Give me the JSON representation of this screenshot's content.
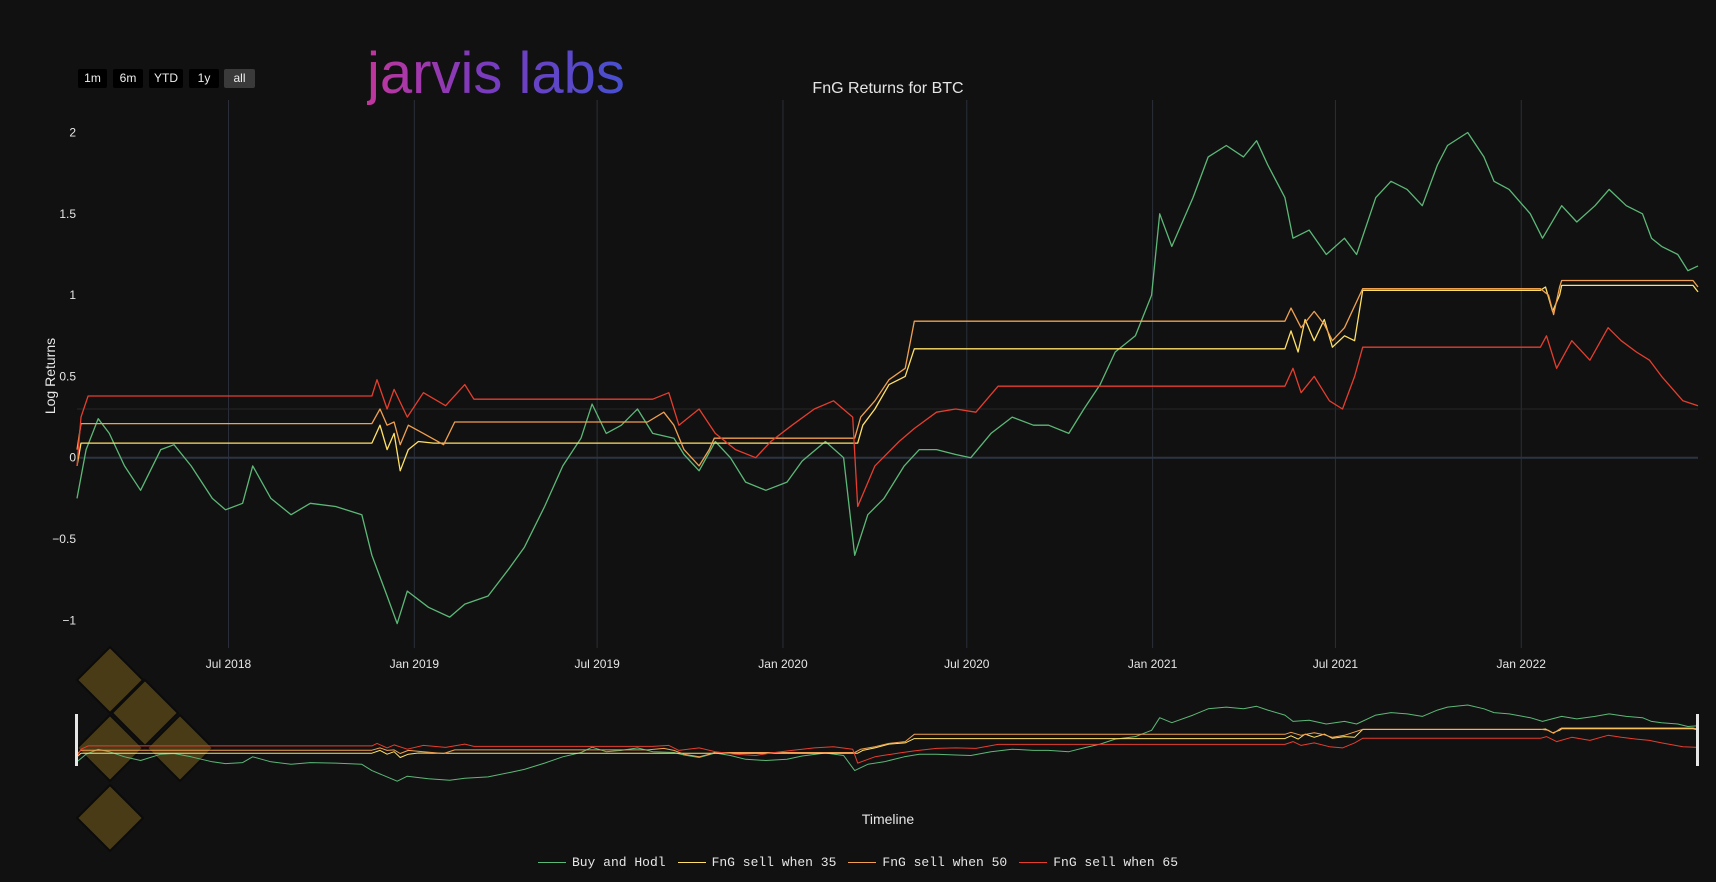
{
  "logo": "jarvis labs",
  "range_buttons": [
    "1m",
    "6m",
    "YTD",
    "1y",
    "all"
  ],
  "active_range": "all",
  "chart_data": {
    "type": "line",
    "title": "FnG Returns for BTC",
    "ylabel": "Log Returns",
    "rangeslider_label": "Timeline",
    "xrange": [
      "2018-02-01",
      "2022-06-25"
    ],
    "ylim": [
      -1.17,
      2.2
    ],
    "x_ticks": [
      {
        "date": "2018-07-01",
        "label": "Jul 2018"
      },
      {
        "date": "2019-01-01",
        "label": "Jan 2019"
      },
      {
        "date": "2019-07-01",
        "label": "Jul 2019"
      },
      {
        "date": "2020-01-01",
        "label": "Jan 2020"
      },
      {
        "date": "2020-07-01",
        "label": "Jul 2020"
      },
      {
        "date": "2021-01-01",
        "label": "Jan 2021"
      },
      {
        "date": "2021-07-01",
        "label": "Jul 2021"
      },
      {
        "date": "2022-01-01",
        "label": "Jan 2022"
      }
    ],
    "y_ticks": [
      {
        "value": -1,
        "label": "−1"
      },
      {
        "value": -0.5,
        "label": "−0.5"
      },
      {
        "value": 0,
        "label": "0"
      },
      {
        "value": 0.5,
        "label": "0.5"
      },
      {
        "value": 1,
        "label": "1"
      },
      {
        "value": 1.5,
        "label": "1.5"
      },
      {
        "value": 2,
        "label": "2"
      }
    ],
    "grid": true,
    "legend_position": "bottom-center",
    "series": [
      {
        "name": "Buy and Hodl",
        "color": "#5cb878",
        "points": [
          [
            "2018-02-01",
            -0.25
          ],
          [
            "2018-02-10",
            0.05
          ],
          [
            "2018-02-22",
            0.24
          ],
          [
            "2018-03-05",
            0.15
          ],
          [
            "2018-03-20",
            -0.05
          ],
          [
            "2018-04-05",
            -0.2
          ],
          [
            "2018-04-25",
            0.05
          ],
          [
            "2018-05-08",
            0.08
          ],
          [
            "2018-05-25",
            -0.05
          ],
          [
            "2018-06-15",
            -0.25
          ],
          [
            "2018-06-28",
            -0.32
          ],
          [
            "2018-07-15",
            -0.28
          ],
          [
            "2018-07-25",
            -0.05
          ],
          [
            "2018-08-12",
            -0.25
          ],
          [
            "2018-09-01",
            -0.35
          ],
          [
            "2018-09-20",
            -0.28
          ],
          [
            "2018-10-15",
            -0.3
          ],
          [
            "2018-11-10",
            -0.35
          ],
          [
            "2018-11-20",
            -0.6
          ],
          [
            "2018-12-05",
            -0.85
          ],
          [
            "2018-12-15",
            -1.02
          ],
          [
            "2018-12-25",
            -0.82
          ],
          [
            "2019-01-15",
            -0.92
          ],
          [
            "2019-02-05",
            -0.98
          ],
          [
            "2019-02-20",
            -0.9
          ],
          [
            "2019-03-15",
            -0.85
          ],
          [
            "2019-04-05",
            -0.68
          ],
          [
            "2019-04-20",
            -0.55
          ],
          [
            "2019-05-10",
            -0.3
          ],
          [
            "2019-05-28",
            -0.05
          ],
          [
            "2019-06-15",
            0.12
          ],
          [
            "2019-06-26",
            0.33
          ],
          [
            "2019-07-10",
            0.15
          ],
          [
            "2019-07-25",
            0.2
          ],
          [
            "2019-08-10",
            0.3
          ],
          [
            "2019-08-25",
            0.15
          ],
          [
            "2019-09-15",
            0.12
          ],
          [
            "2019-09-25",
            0.02
          ],
          [
            "2019-10-10",
            -0.08
          ],
          [
            "2019-10-26",
            0.1
          ],
          [
            "2019-11-10",
            0.0
          ],
          [
            "2019-11-25",
            -0.15
          ],
          [
            "2019-12-15",
            -0.2
          ],
          [
            "2020-01-05",
            -0.15
          ],
          [
            "2020-01-20",
            -0.02
          ],
          [
            "2020-02-12",
            0.1
          ],
          [
            "2020-03-01",
            0.0
          ],
          [
            "2020-03-12",
            -0.6
          ],
          [
            "2020-03-25",
            -0.35
          ],
          [
            "2020-04-10",
            -0.25
          ],
          [
            "2020-04-30",
            -0.05
          ],
          [
            "2020-05-15",
            0.05
          ],
          [
            "2020-06-01",
            0.05
          ],
          [
            "2020-06-20",
            0.02
          ],
          [
            "2020-07-05",
            0.0
          ],
          [
            "2020-07-25",
            0.15
          ],
          [
            "2020-08-15",
            0.25
          ],
          [
            "2020-09-05",
            0.2
          ],
          [
            "2020-09-20",
            0.2
          ],
          [
            "2020-10-10",
            0.15
          ],
          [
            "2020-10-25",
            0.3
          ],
          [
            "2020-11-10",
            0.45
          ],
          [
            "2020-11-25",
            0.65
          ],
          [
            "2020-12-15",
            0.75
          ],
          [
            "2020-12-31",
            1.0
          ],
          [
            "2021-01-08",
            1.5
          ],
          [
            "2021-01-20",
            1.3
          ],
          [
            "2021-02-10",
            1.6
          ],
          [
            "2021-02-25",
            1.85
          ],
          [
            "2021-03-15",
            1.92
          ],
          [
            "2021-04-01",
            1.85
          ],
          [
            "2021-04-14",
            1.95
          ],
          [
            "2021-04-25",
            1.8
          ],
          [
            "2021-05-12",
            1.6
          ],
          [
            "2021-05-20",
            1.35
          ],
          [
            "2021-06-05",
            1.4
          ],
          [
            "2021-06-22",
            1.25
          ],
          [
            "2021-07-10",
            1.35
          ],
          [
            "2021-07-22",
            1.25
          ],
          [
            "2021-08-10",
            1.6
          ],
          [
            "2021-08-25",
            1.7
          ],
          [
            "2021-09-10",
            1.65
          ],
          [
            "2021-09-25",
            1.55
          ],
          [
            "2021-10-10",
            1.8
          ],
          [
            "2021-10-20",
            1.92
          ],
          [
            "2021-11-09",
            2.0
          ],
          [
            "2021-11-25",
            1.85
          ],
          [
            "2021-12-05",
            1.7
          ],
          [
            "2021-12-20",
            1.65
          ],
          [
            "2022-01-10",
            1.5
          ],
          [
            "2022-01-22",
            1.35
          ],
          [
            "2022-02-10",
            1.55
          ],
          [
            "2022-02-25",
            1.45
          ],
          [
            "2022-03-15",
            1.55
          ],
          [
            "2022-03-29",
            1.65
          ],
          [
            "2022-04-15",
            1.55
          ],
          [
            "2022-05-01",
            1.5
          ],
          [
            "2022-05-10",
            1.35
          ],
          [
            "2022-05-20",
            1.3
          ],
          [
            "2022-06-05",
            1.25
          ],
          [
            "2022-06-15",
            1.15
          ],
          [
            "2022-06-25",
            1.18
          ]
        ]
      },
      {
        "name": "FnG sell when 35",
        "color": "#ffe066",
        "points": [
          [
            "2018-02-01",
            -0.05
          ],
          [
            "2018-02-05",
            0.09
          ],
          [
            "2018-11-20",
            0.09
          ],
          [
            "2018-11-28",
            0.2
          ],
          [
            "2018-12-05",
            0.05
          ],
          [
            "2018-12-12",
            0.15
          ],
          [
            "2018-12-18",
            -0.08
          ],
          [
            "2018-12-26",
            0.05
          ],
          [
            "2019-01-05",
            0.1
          ],
          [
            "2019-01-20",
            0.09
          ],
          [
            "2019-09-25",
            0.09
          ],
          [
            "2019-10-05",
            0.09
          ],
          [
            "2020-03-15",
            0.09
          ],
          [
            "2020-03-20",
            0.2
          ],
          [
            "2020-04-01",
            0.3
          ],
          [
            "2020-04-15",
            0.45
          ],
          [
            "2020-05-01",
            0.5
          ],
          [
            "2020-05-10",
            0.67
          ],
          [
            "2021-05-12",
            0.67
          ],
          [
            "2021-05-18",
            0.78
          ],
          [
            "2021-05-25",
            0.65
          ],
          [
            "2021-06-01",
            0.85
          ],
          [
            "2021-06-10",
            0.72
          ],
          [
            "2021-06-20",
            0.85
          ],
          [
            "2021-06-28",
            0.68
          ],
          [
            "2021-07-10",
            0.75
          ],
          [
            "2021-07-20",
            0.72
          ],
          [
            "2021-07-28",
            1.03
          ],
          [
            "2022-01-20",
            1.03
          ],
          [
            "2022-01-25",
            1.05
          ],
          [
            "2022-02-01",
            0.9
          ],
          [
            "2022-02-08",
            1.0
          ],
          [
            "2022-02-10",
            1.06
          ],
          [
            "2022-06-20",
            1.06
          ],
          [
            "2022-06-25",
            1.02
          ]
        ]
      },
      {
        "name": "FnG sell when 50",
        "color": "#f0a050",
        "points": [
          [
            "2018-02-01",
            0.05
          ],
          [
            "2018-02-05",
            0.21
          ],
          [
            "2018-11-20",
            0.21
          ],
          [
            "2018-11-28",
            0.3
          ],
          [
            "2018-12-05",
            0.2
          ],
          [
            "2018-12-12",
            0.22
          ],
          [
            "2018-12-18",
            0.08
          ],
          [
            "2018-12-26",
            0.2
          ],
          [
            "2019-01-10",
            0.15
          ],
          [
            "2019-01-30",
            0.08
          ],
          [
            "2019-02-10",
            0.22
          ],
          [
            "2019-08-20",
            0.22
          ],
          [
            "2019-09-05",
            0.28
          ],
          [
            "2019-09-15",
            0.2
          ],
          [
            "2019-09-25",
            0.05
          ],
          [
            "2019-10-10",
            -0.05
          ],
          [
            "2019-10-20",
            0.05
          ],
          [
            "2019-10-25",
            0.12
          ],
          [
            "2020-03-12",
            0.12
          ],
          [
            "2020-03-18",
            0.25
          ],
          [
            "2020-04-01",
            0.35
          ],
          [
            "2020-04-15",
            0.48
          ],
          [
            "2020-05-01",
            0.55
          ],
          [
            "2020-05-10",
            0.84
          ],
          [
            "2021-05-12",
            0.84
          ],
          [
            "2021-05-18",
            0.92
          ],
          [
            "2021-05-28",
            0.8
          ],
          [
            "2021-06-10",
            0.9
          ],
          [
            "2021-06-20",
            0.82
          ],
          [
            "2021-06-28",
            0.72
          ],
          [
            "2021-07-10",
            0.8
          ],
          [
            "2021-07-28",
            1.04
          ],
          [
            "2022-01-20",
            1.04
          ],
          [
            "2022-01-28",
            1.0
          ],
          [
            "2022-02-02",
            0.88
          ],
          [
            "2022-02-08",
            1.05
          ],
          [
            "2022-02-10",
            1.09
          ],
          [
            "2022-06-20",
            1.09
          ],
          [
            "2022-06-25",
            1.05
          ]
        ]
      },
      {
        "name": "FnG sell when 65",
        "color": "#e53e2e",
        "points": [
          [
            "2018-02-01",
            -0.05
          ],
          [
            "2018-02-05",
            0.25
          ],
          [
            "2018-02-12",
            0.38
          ],
          [
            "2018-11-20",
            0.38
          ],
          [
            "2018-11-25",
            0.48
          ],
          [
            "2018-12-05",
            0.3
          ],
          [
            "2018-12-12",
            0.42
          ],
          [
            "2018-12-25",
            0.25
          ],
          [
            "2019-01-10",
            0.4
          ],
          [
            "2019-02-01",
            0.32
          ],
          [
            "2019-02-20",
            0.45
          ],
          [
            "2019-03-01",
            0.36
          ],
          [
            "2019-08-25",
            0.36
          ],
          [
            "2019-09-10",
            0.4
          ],
          [
            "2019-09-20",
            0.2
          ],
          [
            "2019-10-10",
            0.3
          ],
          [
            "2019-10-26",
            0.15
          ],
          [
            "2019-11-15",
            0.05
          ],
          [
            "2019-12-05",
            0.0
          ],
          [
            "2019-12-20",
            0.1
          ],
          [
            "2020-01-10",
            0.2
          ],
          [
            "2020-02-01",
            0.3
          ],
          [
            "2020-02-20",
            0.35
          ],
          [
            "2020-03-10",
            0.25
          ],
          [
            "2020-03-15",
            -0.3
          ],
          [
            "2020-04-01",
            -0.05
          ],
          [
            "2020-04-25",
            0.1
          ],
          [
            "2020-05-10",
            0.18
          ],
          [
            "2020-06-01",
            0.28
          ],
          [
            "2020-06-20",
            0.3
          ],
          [
            "2020-07-10",
            0.28
          ],
          [
            "2020-08-01",
            0.44
          ],
          [
            "2021-05-12",
            0.44
          ],
          [
            "2021-05-20",
            0.55
          ],
          [
            "2021-05-28",
            0.4
          ],
          [
            "2021-06-10",
            0.5
          ],
          [
            "2021-06-25",
            0.35
          ],
          [
            "2021-07-08",
            0.3
          ],
          [
            "2021-07-20",
            0.5
          ],
          [
            "2021-07-28",
            0.68
          ],
          [
            "2022-01-20",
            0.68
          ],
          [
            "2022-01-26",
            0.75
          ],
          [
            "2022-02-05",
            0.55
          ],
          [
            "2022-02-20",
            0.72
          ],
          [
            "2022-03-10",
            0.6
          ],
          [
            "2022-03-28",
            0.8
          ],
          [
            "2022-04-10",
            0.72
          ],
          [
            "2022-04-25",
            0.65
          ],
          [
            "2022-05-08",
            0.6
          ],
          [
            "2022-05-20",
            0.5
          ],
          [
            "2022-06-10",
            0.35
          ],
          [
            "2022-06-25",
            0.32
          ]
        ]
      }
    ]
  }
}
